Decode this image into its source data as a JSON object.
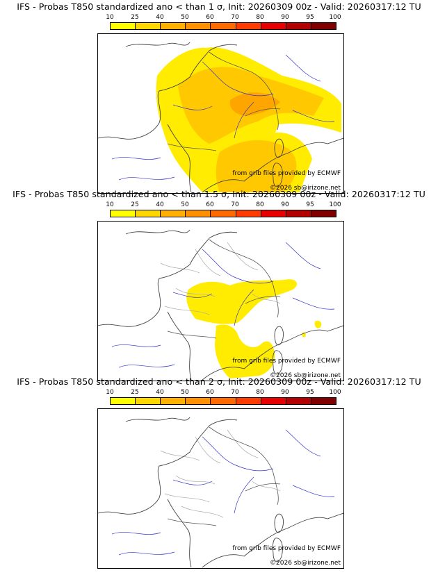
{
  "panels": [
    {
      "title": "IFS - Probas T850  standardized ano < than 1 σ, Init: 20260309 00z - Valid: 20260317:12 TU"
    },
    {
      "title": "IFS - Probas T850  standardized ano < than 1.5 σ, Init: 20260309 00z - Valid: 20260317:12 TU"
    },
    {
      "title": "IFS - Probas T850  standardized ano < than 2 σ, Init: 20260309 00z - Valid: 20260317:12 TU"
    }
  ],
  "scale": {
    "ticks": [
      "10",
      "25",
      "40",
      "50",
      "60",
      "70",
      "80",
      "90",
      "95",
      "100"
    ],
    "colors": [
      "#ffff00",
      "#ffd700",
      "#ffb000",
      "#ff9000",
      "#ff6a00",
      "#ff3b00",
      "#e60000",
      "#b30000",
      "#800000"
    ]
  },
  "credit": "from grib files provided by ECMWF",
  "copyright": "©2026 sb@irizone.net"
}
